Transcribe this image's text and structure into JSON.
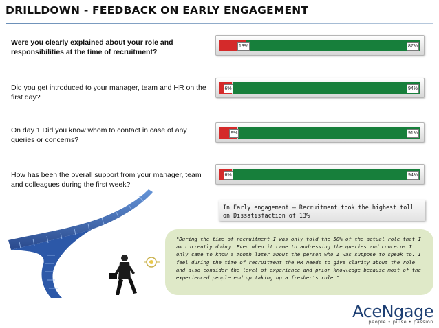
{
  "header": {
    "title": "DRILLDOWN - FEEDBACK ON EARLY ENGAGEMENT"
  },
  "questions": [
    {
      "text": "Were you clearly explained about your role and responsibilities at the time of recruitment?",
      "no_label": "13%",
      "yes_label": "87%"
    },
    {
      "text": "Did you get introduced to your manager, team and HR on the first day?",
      "no_label": "6%",
      "yes_label": "94%"
    },
    {
      "text": "On day 1 Did you know whom to contact in case of any queries or concerns?",
      "no_label": "9%",
      "yes_label": "91%"
    },
    {
      "text": "How has been the overall support from your manager, team and colleagues during the first week?",
      "no_label": "6%",
      "yes_label": "94%"
    }
  ],
  "chart_data": {
    "type": "bar",
    "orientation": "horizontal-stacked-100",
    "categories": [
      "Were you clearly explained about your role and responsibilities at the time of recruitment?",
      "Did you get introduced to your manager, team and HR on the first day?",
      "On day 1 Did you know whom to contact in case of any queries or concerns?",
      "How has been the overall support from your manager, team and colleagues during the first week?"
    ],
    "series": [
      {
        "values": [
          13,
          6,
          9,
          6
        ],
        "color": "#d42a2a"
      },
      {
        "values": [
          87,
          94,
          91,
          94
        ],
        "color": "#177f3b"
      }
    ],
    "xlim": [
      0,
      100
    ],
    "grid": false
  },
  "summary": {
    "text": "In Early engagement – Recruitment took the highest toll on Dissatisfaction of 13%"
  },
  "quote": {
    "text": "\"During the time of recruitment I was only told the 50% of the actual role that I am currently doing. Even when it came to addressing the queries and concerns I only came to know a month later about the person who I was suppose to speak to. I feel during the time of recruitment the HR needs to give clarity about the role and also consider the level of experience and prior knowledge because most of the experienced people end up taking up a fresher's role.\""
  },
  "logo": {
    "name": "AceNgage",
    "tagline": "people • pulse • passion"
  },
  "colors": {
    "dissatisfied": "#d42a2a",
    "satisfied": "#177f3b",
    "brand": "#1d3f73"
  }
}
